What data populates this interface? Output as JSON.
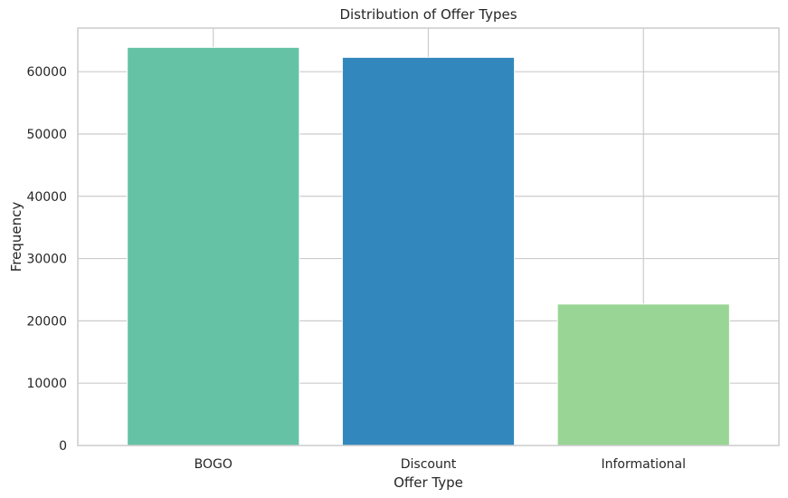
{
  "chart_data": {
    "type": "bar",
    "title": "Distribution of Offer Types",
    "xlabel": "Offer Type",
    "ylabel": "Frequency",
    "categories": [
      "BOGO",
      "Discount",
      "Informational"
    ],
    "values": [
      63900,
      62300,
      22700
    ],
    "colors": [
      "#66c2a5",
      "#3288bd",
      "#99d594"
    ],
    "ylim": [
      0,
      67000
    ],
    "yticks": [
      0,
      10000,
      20000,
      30000,
      40000,
      50000,
      60000
    ],
    "grid": true
  }
}
